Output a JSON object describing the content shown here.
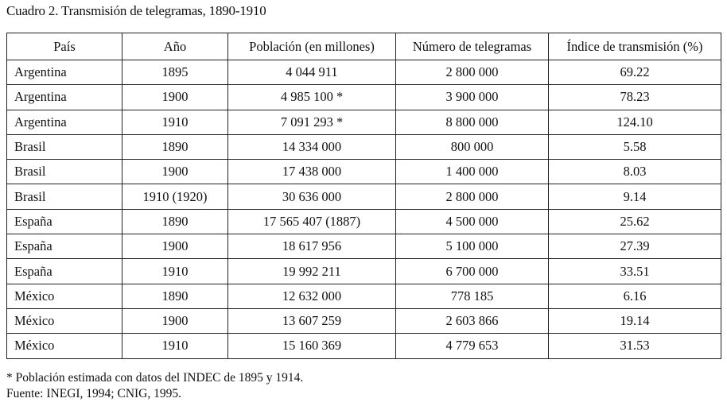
{
  "title": "Cuadro 2. Transmisión de telegramas, 1890-1910",
  "table": {
    "headers": [
      "País",
      "Año",
      "Población (en millones)",
      "Número de telegramas",
      "Índice de transmisión (%)"
    ],
    "rows": [
      [
        "Argentina",
        "1895",
        "4 044 911",
        "2 800 000",
        "69.22"
      ],
      [
        "Argentina",
        "1900",
        "4 985 100 *",
        "3 900 000",
        "78.23"
      ],
      [
        "Argentina",
        "1910",
        "7 091 293 *",
        "8 800 000",
        "124.10"
      ],
      [
        "Brasil",
        "1890",
        "14 334 000",
        "800 000",
        "5.58"
      ],
      [
        "Brasil",
        "1900",
        "17 438 000",
        "1 400 000",
        "8.03"
      ],
      [
        "Brasil",
        "1910 (1920)",
        "30 636 000",
        "2 800 000",
        "9.14"
      ],
      [
        "España",
        "1890",
        "17 565 407 (1887)",
        "4 500 000",
        "25.62"
      ],
      [
        "España",
        "1900",
        "18 617 956",
        "5 100 000",
        "27.39"
      ],
      [
        "España",
        "1910",
        "19 992 211",
        "6 700 000",
        "33.51"
      ],
      [
        "México",
        "1890",
        "12 632 000",
        "778 185",
        "6.16"
      ],
      [
        "México",
        "1900",
        "13 607 259",
        "2 603 866",
        "19.14"
      ],
      [
        "México",
        "1910",
        "15 160 369",
        "4 779 653",
        "31.53"
      ]
    ]
  },
  "notes": {
    "footnote": "* Población estimada con datos del INDEC de 1895 y 1914.",
    "source": "Fuente: INEGI, 1994; CNIG, 1995."
  }
}
